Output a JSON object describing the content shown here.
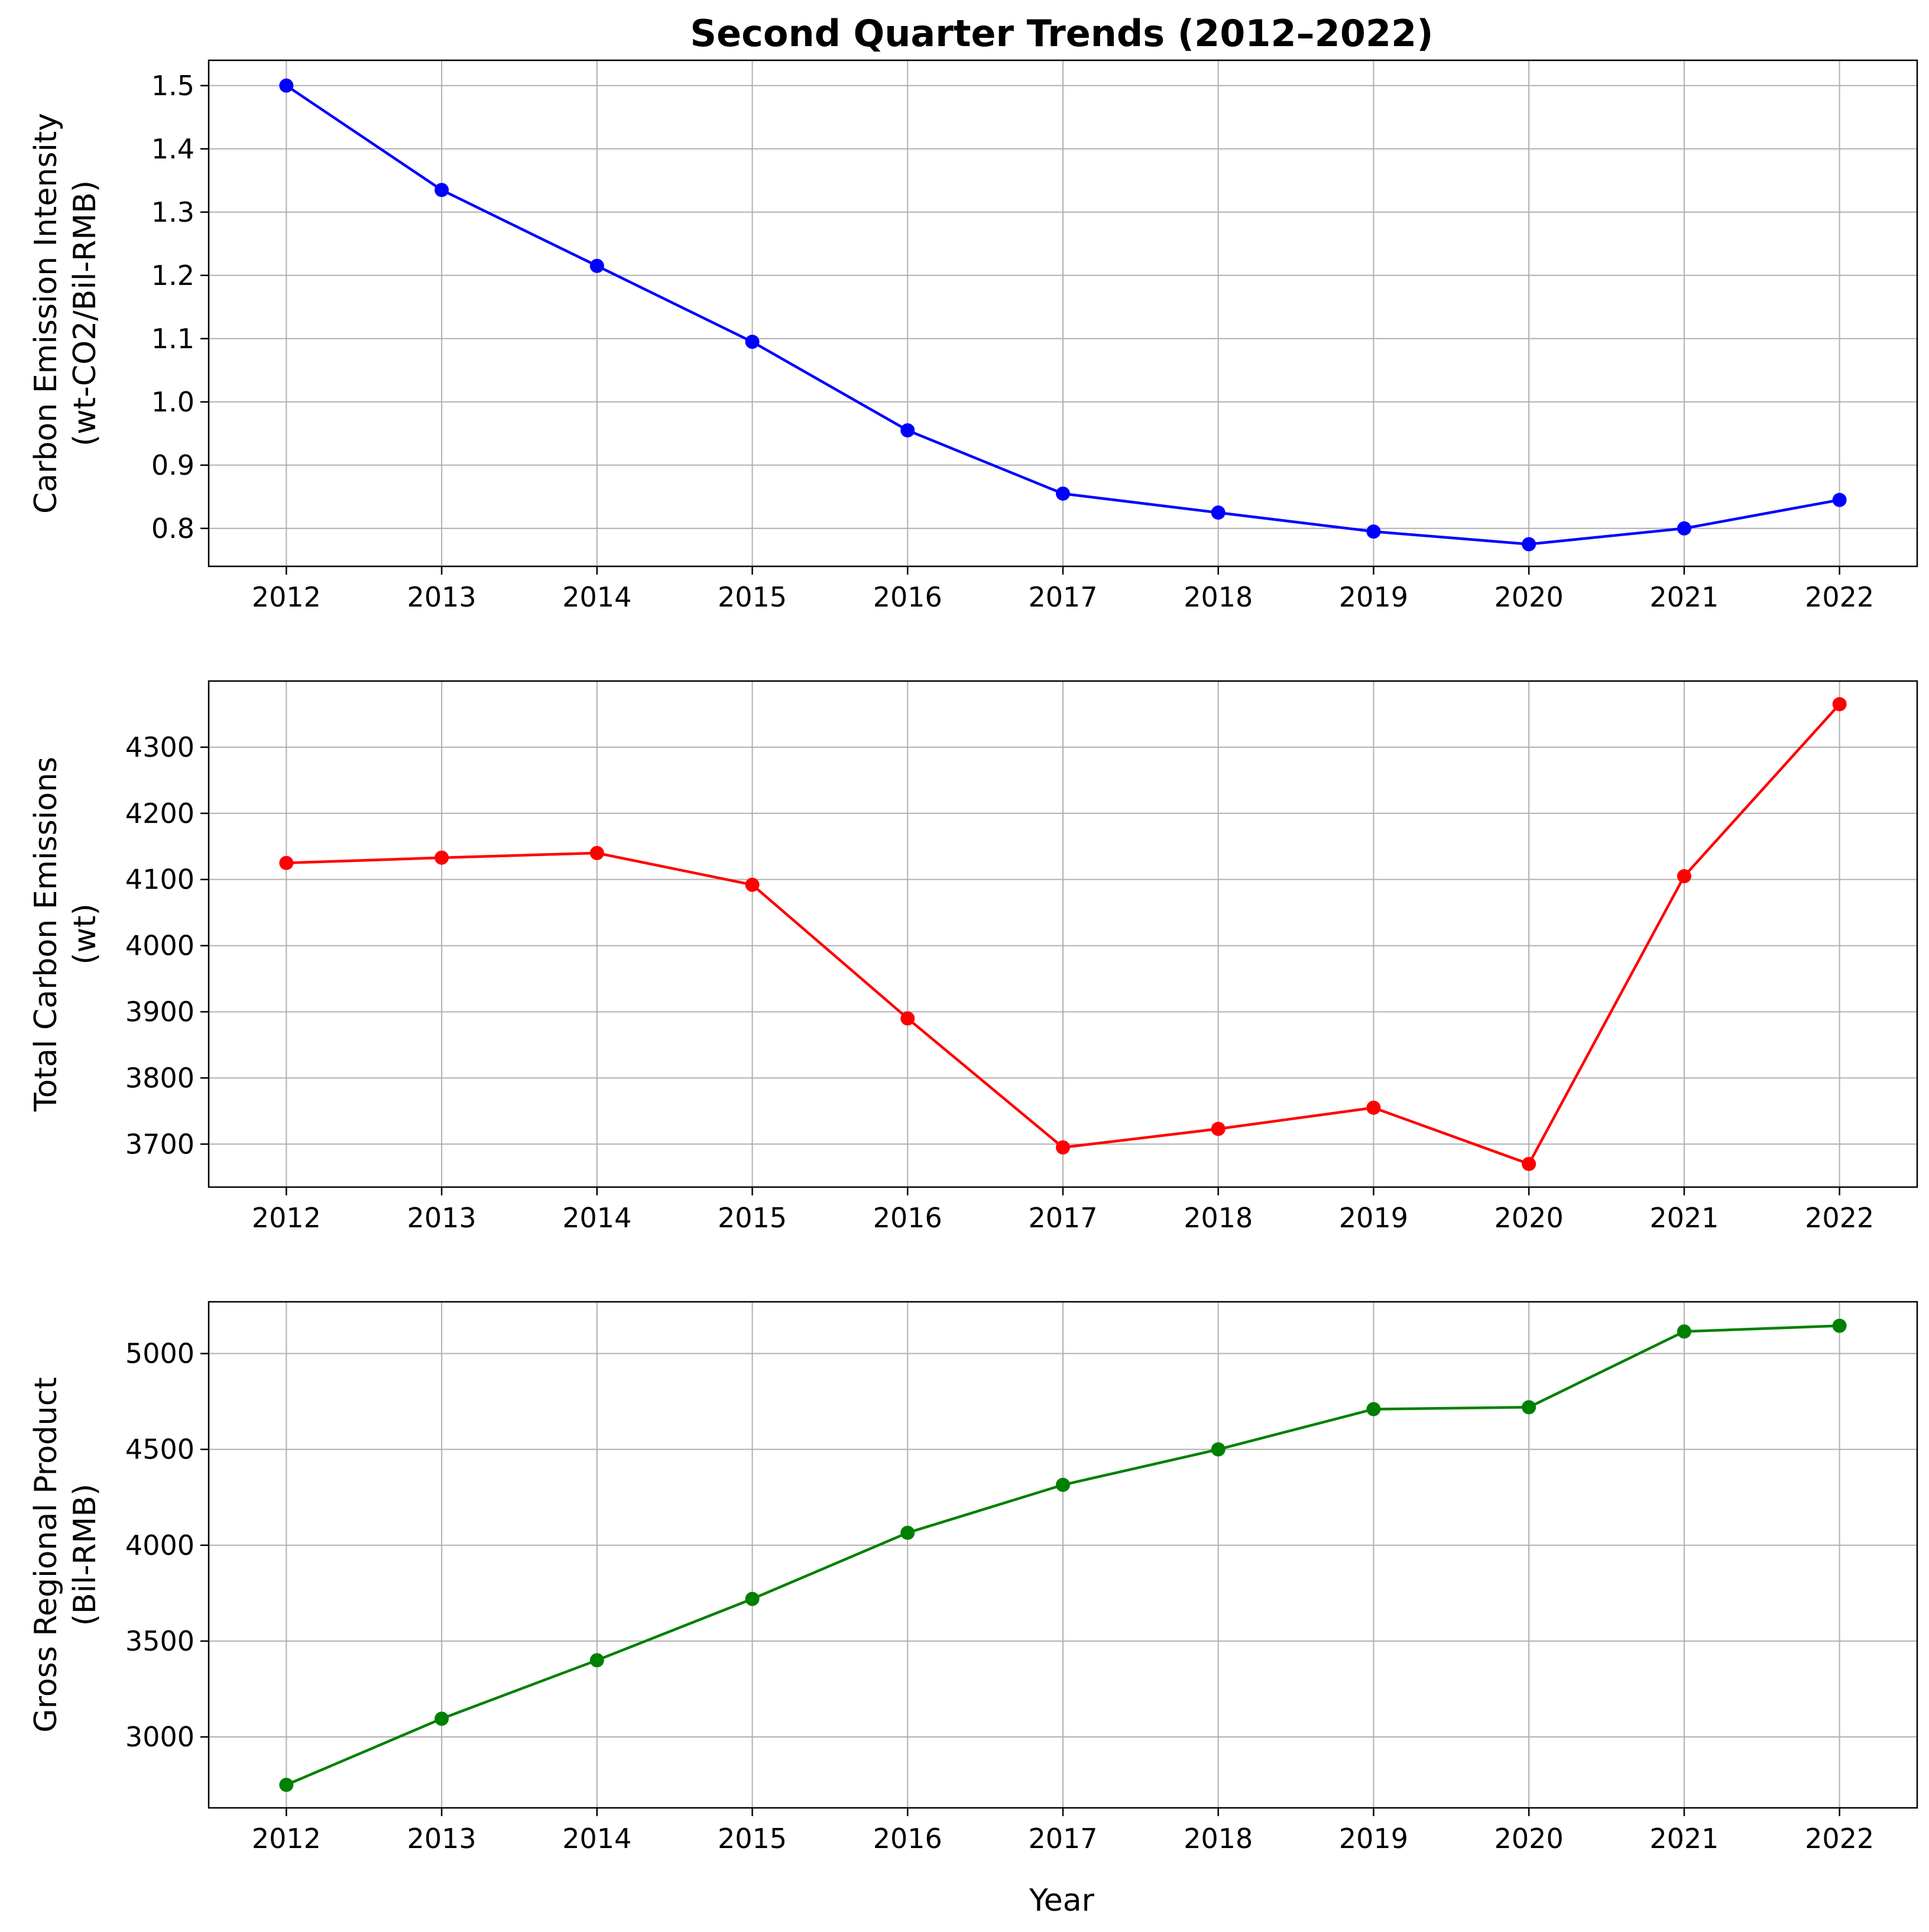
{
  "title": "Second Quarter Trends (2012–2022)",
  "xlabel": "Year",
  "chart_data": [
    {
      "type": "line",
      "title": "Second Quarter Trends (2012–2022)",
      "x": [
        2012,
        2013,
        2014,
        2015,
        2016,
        2017,
        2018,
        2019,
        2020,
        2021,
        2022
      ],
      "xlabel": "",
      "ylabel": [
        "Carbon Emission Intensity",
        "(wt-CO2/Bil-RMB)"
      ],
      "ylim": [
        0.74,
        1.54
      ],
      "yticks": [
        0.8,
        0.9,
        1.0,
        1.1,
        1.2,
        1.3,
        1.4,
        1.5
      ],
      "ytick_labels": [
        "0.8",
        "0.9",
        "1.0",
        "1.1",
        "1.2",
        "1.3",
        "1.4",
        "1.5"
      ],
      "grid": true,
      "legend": "none",
      "series": [
        {
          "values": [
            1.5,
            1.335,
            1.215,
            1.095,
            0.955,
            0.855,
            0.825,
            0.795,
            0.775,
            0.8,
            0.845
          ],
          "color": "#0000ff",
          "marker": "circle"
        }
      ]
    },
    {
      "type": "line",
      "x": [
        2012,
        2013,
        2014,
        2015,
        2016,
        2017,
        2018,
        2019,
        2020,
        2021,
        2022
      ],
      "xlabel": "",
      "ylabel": [
        "Total Carbon Emissions",
        "(wt)"
      ],
      "ylim": [
        3635,
        4400
      ],
      "yticks": [
        3700,
        3800,
        3900,
        4000,
        4100,
        4200,
        4300
      ],
      "ytick_labels": [
        "3700",
        "3800",
        "3900",
        "4000",
        "4100",
        "4200",
        "4300"
      ],
      "grid": true,
      "legend": "none",
      "series": [
        {
          "values": [
            4125,
            4133,
            4140,
            4092,
            3890,
            3695,
            3723,
            3755,
            3670,
            4105,
            4365
          ],
          "color": "#ff0000",
          "marker": "circle"
        }
      ]
    },
    {
      "type": "line",
      "x": [
        2012,
        2013,
        2014,
        2015,
        2016,
        2017,
        2018,
        2019,
        2020,
        2021,
        2022
      ],
      "xlabel": "Year",
      "ylabel": [
        "Gross Regional Product",
        "(Bil-RMB)"
      ],
      "ylim": [
        2630,
        5270
      ],
      "yticks": [
        3000,
        3500,
        4000,
        4500,
        5000
      ],
      "ytick_labels": [
        "3000",
        "3500",
        "4000",
        "4500",
        "5000"
      ],
      "grid": true,
      "legend": "none",
      "series": [
        {
          "values": [
            2750,
            3095,
            3400,
            3720,
            4065,
            4315,
            4500,
            4710,
            4720,
            5115,
            5145
          ],
          "color": "#008000",
          "marker": "circle"
        }
      ]
    }
  ]
}
